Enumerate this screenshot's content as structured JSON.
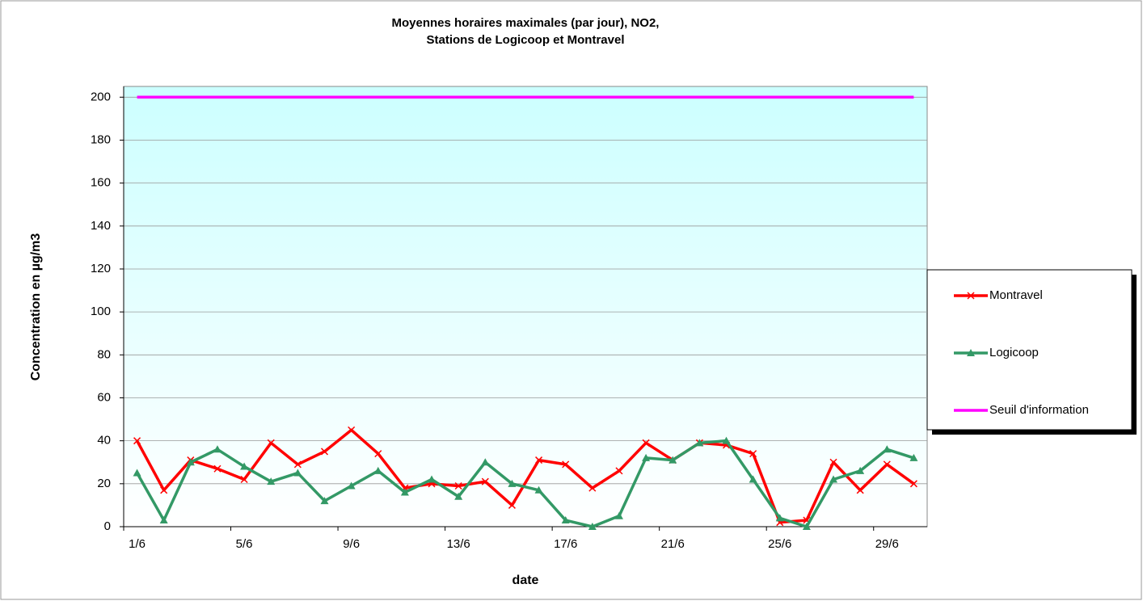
{
  "chart_data": {
    "type": "line",
    "title": [
      "Moyennes horaires maximales (par jour), NO2,",
      "Stations de Logicoop et Montravel"
    ],
    "x_label": "date",
    "y_label": "Concentration en µg/m3",
    "categories": [
      "1/6",
      null,
      null,
      null,
      "5/6",
      null,
      null,
      null,
      "9/6",
      null,
      null,
      null,
      "13/6",
      null,
      null,
      null,
      "17/6",
      null,
      null,
      null,
      "21/6",
      null,
      null,
      null,
      "25/6",
      null,
      null,
      null,
      "29/6",
      null
    ],
    "series": [
      {
        "name": "Montravel",
        "color": "#ff0000",
        "marker": "x",
        "values": [
          40,
          17,
          31,
          27,
          22,
          39,
          29,
          35,
          45,
          34,
          18,
          20,
          19,
          21,
          10,
          31,
          29,
          18,
          26,
          39,
          31,
          39,
          38,
          34,
          2,
          3,
          30,
          17,
          29,
          20
        ]
      },
      {
        "name": "Logicoop",
        "color": "#339966",
        "marker": "triangle",
        "values": [
          25,
          3,
          30,
          36,
          28,
          21,
          25,
          12,
          19,
          26,
          16,
          22,
          14,
          30,
          20,
          17,
          3,
          0,
          5,
          32,
          31,
          39,
          40,
          22,
          4,
          0,
          22,
          26,
          36,
          32
        ]
      },
      {
        "name": "Seuil d'information",
        "color": "#ff00ff",
        "marker": "none",
        "values": [
          200,
          200,
          200,
          200,
          200,
          200,
          200,
          200,
          200,
          200,
          200,
          200,
          200,
          200,
          200,
          200,
          200,
          200,
          200,
          200,
          200,
          200,
          200,
          200,
          200,
          200,
          200,
          200,
          200,
          200
        ]
      }
    ],
    "ylim": [
      0,
      205
    ],
    "yticks": [
      0,
      20,
      40,
      60,
      80,
      100,
      120,
      140,
      160,
      180,
      200
    ],
    "grid": true,
    "legend": "right"
  }
}
